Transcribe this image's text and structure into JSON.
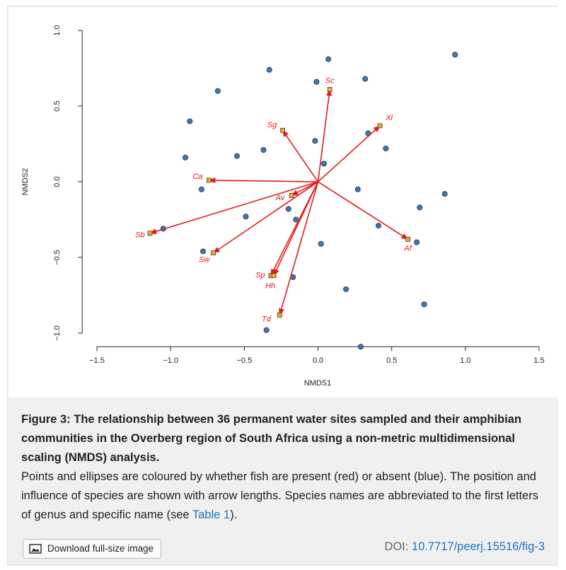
{
  "chart_data": {
    "type": "scatter",
    "xlabel": "NMDS1",
    "ylabel": "NMDS2",
    "xlim": [
      -1.6,
      1.6
    ],
    "ylim": [
      -1.09,
      1.06
    ],
    "xticks": [
      {
        "value": -1.5,
        "label": "−1.5"
      },
      {
        "value": -1.0,
        "label": "−1.0"
      },
      {
        "value": -0.5,
        "label": "−0.5"
      },
      {
        "value": 0.0,
        "label": "0.0"
      },
      0.5,
      {
        "value": 1.0,
        "label": "1.0"
      },
      1.5
    ],
    "yticks": [
      {
        "value": -1.0,
        "label": "−1.0"
      },
      {
        "value": -0.5,
        "label": "−0.5"
      },
      {
        "value": 0.0,
        "label": "0.0"
      },
      0.5,
      {
        "value": 1.0,
        "label": "1.0"
      }
    ],
    "points": {
      "color": "#3f78b4",
      "x": [
        0.93,
        0.07,
        -0.33,
        0.32,
        -0.01,
        -0.68,
        -0.87,
        0.34,
        0.46,
        -0.02,
        -0.37,
        -0.55,
        -0.9,
        0.04,
        -0.79,
        0.27,
        0.86,
        -0.2,
        0.69,
        -0.49,
        -0.15,
        0.41,
        -1.05,
        0.02,
        0.67,
        -0.78,
        -0.17,
        0.19,
        0.72,
        -0.35,
        0.29
      ],
      "y": [
        0.84,
        0.81,
        0.74,
        0.68,
        0.66,
        0.6,
        0.4,
        0.32,
        0.22,
        0.27,
        0.21,
        0.17,
        0.16,
        0.12,
        -0.05,
        -0.05,
        -0.08,
        -0.18,
        -0.17,
        -0.23,
        -0.25,
        -0.29,
        -0.31,
        -0.41,
        -0.4,
        -0.46,
        -0.63,
        -0.71,
        -0.81,
        -0.98,
        -1.09
      ]
    },
    "species": {
      "color": "#f0a43a",
      "arrow_color": "#e41a1c",
      "labels": [
        "Sc",
        "Xl",
        "Sg",
        "Ca",
        "Av",
        "Sb",
        "Af",
        "Sw",
        "Sp",
        "Hh",
        "Td"
      ],
      "x": [
        0.08,
        0.42,
        -0.24,
        -0.74,
        -0.18,
        -1.14,
        0.61,
        -0.71,
        -0.32,
        -0.3,
        -0.26
      ],
      "y": [
        0.61,
        0.37,
        0.34,
        0.01,
        -0.09,
        -0.34,
        -0.38,
        -0.47,
        -0.62,
        -0.62,
        -0.88
      ]
    }
  },
  "figure": {
    "title": "Figure 3: The relationship between 36 permanent water sites sampled and their amphibian communities in the Overberg region of South Africa using a non-metric multidimensional scaling (NMDS) analysis.",
    "description_start": "Points and ellipses are coloured by whether fish are present (red) or absent (blue). The position and influence of species are shown with arrow lengths. Species names are abbreviated to the first letters of genus and specific name (see ",
    "description_link": "Table 1",
    "description_end": ").",
    "download_button": "Download full-size image",
    "doi_label": "DOI:",
    "doi_link": "10.7717/peerj.15516/fig-3"
  }
}
